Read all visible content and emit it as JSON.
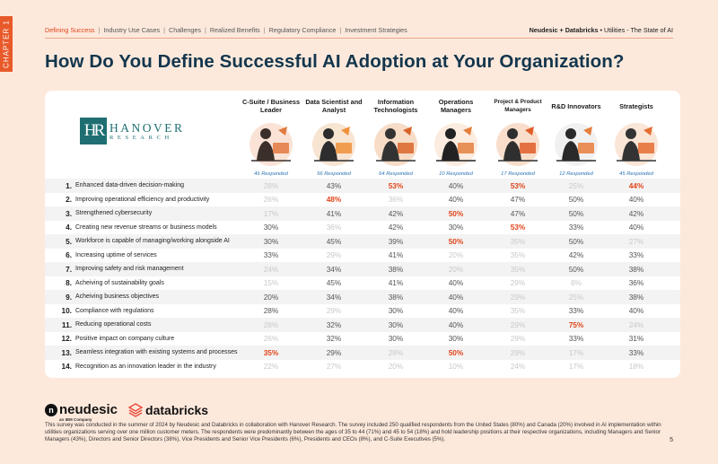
{
  "chapter": "CHAPTER 1",
  "nav": {
    "items": [
      "Defining Success",
      "Industry Use Cases",
      "Challenges",
      "Realized Benefits",
      "Regulatory Compliance",
      "Investment Strategies"
    ],
    "active_index": 0
  },
  "brand": {
    "neudesic": "Neudesic",
    "plus1": "+",
    "databricks": "Databricks",
    "plus2": "•",
    "report": "Utilities - The State of AI"
  },
  "title": "How Do You Define Successful AI Adoption at Your Organization?",
  "hanover": {
    "mark": "HR",
    "name": "HANOVER",
    "sub": "RESEARCH"
  },
  "columns": [
    {
      "label": "C-Suite / Business Leader",
      "responded": "46 Responded",
      "icon": "csuite-illustration"
    },
    {
      "label": "Data Scientist and Analyst",
      "responded": "56 Responded",
      "icon": "data-scientist-illustration"
    },
    {
      "label": "Information Technologists",
      "responded": "64 Responded",
      "icon": "it-illustration"
    },
    {
      "label": "Operations Managers",
      "responded": "10 Responded",
      "icon": "operations-illustration"
    },
    {
      "label": "Project & Product Managers",
      "responded": "17 Responded",
      "icon": "project-illustration"
    },
    {
      "label": "R&D Innovators",
      "responded": "12 Responded",
      "icon": "rnd-illustration"
    },
    {
      "label": "Strategists",
      "responded": "45 Responded",
      "icon": "strategists-illustration"
    }
  ],
  "rows": [
    {
      "num": "1.",
      "label": "Enhanced data-driven decision-making",
      "values": [
        "28%",
        "43%",
        "53%",
        "40%",
        "53%",
        "25%",
        "44%"
      ]
    },
    {
      "num": "2.",
      "label": "Improving operational efficiency and productivity",
      "values": [
        "26%",
        "48%",
        "36%",
        "40%",
        "47%",
        "50%",
        "40%"
      ]
    },
    {
      "num": "3.",
      "label": "Strengthened cybersecurity",
      "values": [
        "17%",
        "41%",
        "42%",
        "50%",
        "47%",
        "50%",
        "42%"
      ]
    },
    {
      "num": "4.",
      "label": "Creating new revenue streams or business models",
      "values": [
        "30%",
        "36%",
        "42%",
        "30%",
        "53%",
        "33%",
        "40%"
      ]
    },
    {
      "num": "5.",
      "label": "Workforce is capable of managing/working alongside AI",
      "values": [
        "30%",
        "45%",
        "39%",
        "50%",
        "35%",
        "50%",
        "27%"
      ]
    },
    {
      "num": "6.",
      "label": "Increasing uptime of services",
      "values": [
        "33%",
        "29%",
        "41%",
        "20%",
        "35%",
        "42%",
        "33%"
      ]
    },
    {
      "num": "7.",
      "label": "Improving safety and risk management",
      "values": [
        "24%",
        "34%",
        "38%",
        "20%",
        "35%",
        "50%",
        "38%"
      ]
    },
    {
      "num": "8.",
      "label": "Acheiving of sustainability goals",
      "values": [
        "15%",
        "45%",
        "41%",
        "40%",
        "29%",
        "8%",
        "36%"
      ]
    },
    {
      "num": "9.",
      "label": "Acheiving business objectives",
      "values": [
        "20%",
        "34%",
        "38%",
        "40%",
        "29%",
        "25%",
        "38%"
      ]
    },
    {
      "num": "10.",
      "label": "Compliance with regulations",
      "values": [
        "28%",
        "29%",
        "30%",
        "40%",
        "35%",
        "33%",
        "40%"
      ]
    },
    {
      "num": "11.",
      "label": "Reducing operational costs",
      "values": [
        "28%",
        "32%",
        "30%",
        "40%",
        "29%",
        "75%",
        "24%"
      ]
    },
    {
      "num": "12.",
      "label": "Positive impact on company culture",
      "values": [
        "26%",
        "32%",
        "30%",
        "30%",
        "29%",
        "33%",
        "31%"
      ]
    },
    {
      "num": "13.",
      "label": "Seamless integration with existing systems and processes",
      "values": [
        "35%",
        "29%",
        "28%",
        "50%",
        "29%",
        "17%",
        "33%"
      ]
    },
    {
      "num": "14.",
      "label": "Recognition as an innovation leader in the industry",
      "values": [
        "22%",
        "27%",
        "20%",
        "10%",
        "24%",
        "17%",
        "18%"
      ]
    }
  ],
  "highlights": [
    [
      0,
      2
    ],
    [
      0,
      4
    ],
    [
      0,
      6
    ],
    [
      1,
      1
    ],
    [
      2,
      3
    ],
    [
      3,
      4
    ],
    [
      4,
      3
    ],
    [
      10,
      5
    ],
    [
      12,
      0
    ],
    [
      12,
      3
    ]
  ],
  "lowlights": [
    [
      0,
      0
    ],
    [
      0,
      5
    ],
    [
      1,
      0
    ],
    [
      1,
      2
    ],
    [
      2,
      0
    ],
    [
      3,
      1
    ],
    [
      4,
      4
    ],
    [
      4,
      6
    ],
    [
      5,
      1
    ],
    [
      5,
      3
    ],
    [
      5,
      4
    ],
    [
      6,
      0
    ],
    [
      6,
      3
    ],
    [
      6,
      4
    ],
    [
      7,
      0
    ],
    [
      7,
      4
    ],
    [
      7,
      5
    ],
    [
      8,
      4
    ],
    [
      8,
      5
    ],
    [
      9,
      1
    ],
    [
      9,
      4
    ],
    [
      10,
      0
    ],
    [
      10,
      4
    ],
    [
      10,
      6
    ],
    [
      11,
      0
    ],
    [
      11,
      4
    ],
    [
      12,
      2
    ],
    [
      12,
      4
    ],
    [
      12,
      5
    ],
    [
      13,
      0
    ],
    [
      13,
      1
    ],
    [
      13,
      2
    ],
    [
      13,
      3
    ],
    [
      13,
      4
    ],
    [
      13,
      5
    ],
    [
      13,
      6
    ]
  ],
  "logos": {
    "neudesic": "neudesic",
    "neudesic_sub": "an IBM Company",
    "databricks": "databricks"
  },
  "footer": "This survey was conducted in the summer of 2024 by Neudesic and Databricks in collaboration with Hanover Research. The survey included 250 qualified respondents from the United States (80%) and Canada (20%) involved in AI implementation within utilities organizations serving over one million customer meters. The respondents were predominantly between the ages of 35 to 44 (71%) and 45 to 54 (18%) and hold leadership positions at their respective organizations, including Managers and Senior Managers (43%), Directors and Senior Directors (38%), Vice Presidents and Senior Vice Presidents (6%), Presidents and CEOs (8%), and C-Suite Executives (5%).",
  "page_number": "5",
  "colors": {
    "accent": "#e0451b",
    "title": "#13364d",
    "hanover": "#1f6f72",
    "link": "#2b74b6"
  }
}
